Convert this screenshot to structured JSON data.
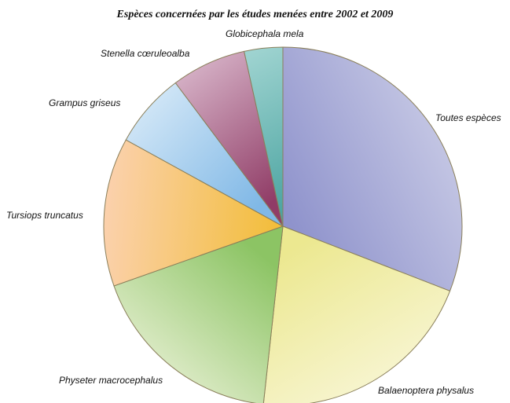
{
  "chart_data": {
    "type": "pie",
    "title": "Espèces concernées par les études menées entre 2002 et 2009",
    "start_angle_deg": 0,
    "direction": "clockwise",
    "slices": [
      {
        "label": "Toutes espèces",
        "value": 32.0,
        "color_a": "#c9cbe6",
        "color_b": "#8f93cc"
      },
      {
        "label": "Balaenoptera physalus",
        "value": 21.6,
        "color_a": "#f8f6d6",
        "color_b": "#ece890"
      },
      {
        "label": "Physeter macrocephalus",
        "value": 18.5,
        "color_a": "#e8f0d4",
        "color_b": "#8cc464"
      },
      {
        "label": "Tursiops truncatus",
        "value": 13.9,
        "color_a": "#fbd1ad",
        "color_b": "#f2bd38"
      },
      {
        "label": "Grampus griseus",
        "value": 7.0,
        "color_a": "#cfe5f6",
        "color_b": "#80b8e6"
      },
      {
        "label": "Stenella cœruleoalba",
        "value": 7.0,
        "color_a": "#d3adc3",
        "color_b": "#903c66"
      },
      {
        "label": "Globicephala mela",
        "value": 3.6,
        "color_a": "#9ed3d0",
        "color_b": "#4aa3a0"
      }
    ]
  }
}
